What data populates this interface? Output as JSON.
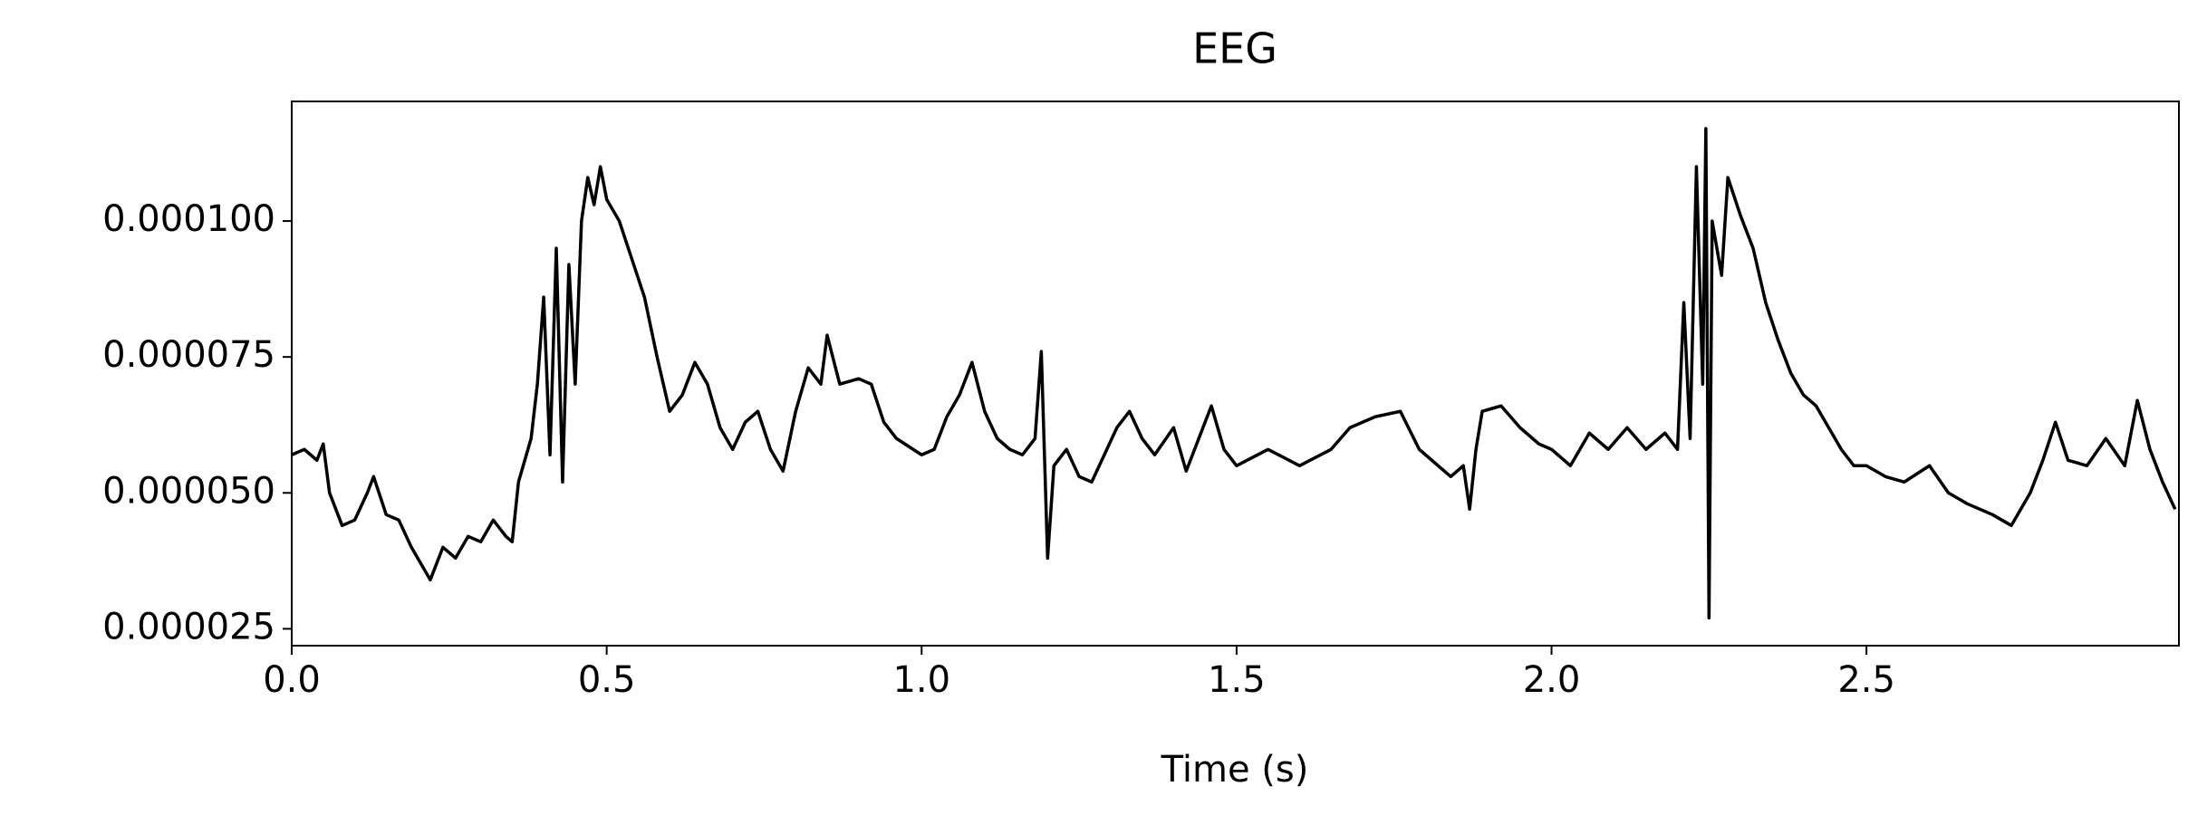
{
  "chart_data": {
    "type": "line",
    "title": "EEG",
    "xlabel": "Time (s)",
    "xlim": [
      0,
      2.996
    ],
    "ylim": [
      2.19e-05,
      0.000122
    ],
    "xticks": [
      {
        "value": 0,
        "label": "0.0"
      },
      0.5,
      {
        "value": 1,
        "label": "1.0"
      },
      1.5,
      {
        "value": 2,
        "label": "2.0"
      },
      2.5
    ],
    "yticks": [
      2.5e-05,
      {
        "value": 5e-05,
        "label": "0.000050"
      },
      7.5e-05,
      {
        "value": 0.0001,
        "label": "0.000100"
      }
    ],
    "grid": false,
    "x": [
      0,
      0.02,
      0.04,
      0.05,
      0.06,
      0.08,
      0.1,
      0.12,
      0.13,
      0.15,
      0.17,
      0.19,
      0.21,
      0.22,
      0.24,
      0.26,
      0.28,
      0.3,
      0.32,
      0.34,
      0.35,
      0.36,
      0.38,
      0.39,
      0.4,
      0.41,
      0.42,
      0.43,
      0.44,
      0.45,
      0.46,
      0.47,
      0.48,
      0.49,
      0.5,
      0.52,
      0.54,
      0.56,
      0.58,
      0.6,
      0.62,
      0.64,
      0.66,
      0.68,
      0.7,
      0.72,
      0.74,
      0.76,
      0.78,
      0.8,
      0.82,
      0.84,
      0.85,
      0.87,
      0.9,
      0.92,
      0.94,
      0.96,
      1.0,
      1.02,
      1.04,
      1.06,
      1.08,
      1.1,
      1.12,
      1.14,
      1.16,
      1.18,
      1.19,
      1.2,
      1.21,
      1.23,
      1.25,
      1.27,
      1.29,
      1.31,
      1.33,
      1.35,
      1.37,
      1.4,
      1.42,
      1.44,
      1.46,
      1.48,
      1.5,
      1.55,
      1.6,
      1.65,
      1.68,
      1.72,
      1.76,
      1.79,
      1.82,
      1.84,
      1.86,
      1.87,
      1.88,
      1.89,
      1.92,
      1.95,
      1.98,
      2.0,
      2.03,
      2.06,
      2.09,
      2.12,
      2.15,
      2.18,
      2.2,
      2.21,
      2.22,
      2.23,
      2.24,
      2.245,
      2.25,
      2.255,
      2.27,
      2.28,
      2.3,
      2.32,
      2.34,
      2.36,
      2.38,
      2.4,
      2.42,
      2.44,
      2.46,
      2.48,
      2.5,
      2.53,
      2.56,
      2.6,
      2.63,
      2.66,
      2.7,
      2.73,
      2.76,
      2.78,
      2.8,
      2.82,
      2.85,
      2.88,
      2.91,
      2.93,
      2.95,
      2.97,
      2.99
    ],
    "series": [
      {
        "name": "EEG",
        "color": "#000000",
        "values": [
          5.7e-05,
          5.8e-05,
          5.6e-05,
          5.9e-05,
          5e-05,
          4.4e-05,
          4.5e-05,
          5e-05,
          5.3e-05,
          4.6e-05,
          4.5e-05,
          4e-05,
          3.6e-05,
          3.4e-05,
          4e-05,
          3.8e-05,
          4.2e-05,
          4.1e-05,
          4.5e-05,
          4.2e-05,
          4.1e-05,
          5.2e-05,
          6e-05,
          7e-05,
          8.6e-05,
          5.7e-05,
          9.5e-05,
          5.2e-05,
          9.2e-05,
          7e-05,
          0.0001,
          0.000108,
          0.000103,
          0.00011,
          0.000104,
          0.0001,
          9.3e-05,
          8.6e-05,
          7.5e-05,
          6.5e-05,
          6.8e-05,
          7.4e-05,
          7e-05,
          6.2e-05,
          5.8e-05,
          6.3e-05,
          6.5e-05,
          5.8e-05,
          5.4e-05,
          6.5e-05,
          7.3e-05,
          7e-05,
          7.9e-05,
          7e-05,
          7.1e-05,
          7e-05,
          6.3e-05,
          6e-05,
          5.7e-05,
          5.8e-05,
          6.4e-05,
          6.8e-05,
          7.4e-05,
          6.5e-05,
          6e-05,
          5.8e-05,
          5.7e-05,
          6e-05,
          7.6e-05,
          3.8e-05,
          5.5e-05,
          5.8e-05,
          5.3e-05,
          5.2e-05,
          5.7e-05,
          6.2e-05,
          6.5e-05,
          6e-05,
          5.7e-05,
          6.2e-05,
          5.4e-05,
          6e-05,
          6.6e-05,
          5.8e-05,
          5.5e-05,
          5.8e-05,
          5.5e-05,
          5.8e-05,
          6.2e-05,
          6.4e-05,
          6.5e-05,
          5.8e-05,
          5.5e-05,
          5.3e-05,
          5.5e-05,
          4.7e-05,
          5.8e-05,
          6.5e-05,
          6.6e-05,
          6.2e-05,
          5.9e-05,
          5.8e-05,
          5.5e-05,
          6.1e-05,
          5.8e-05,
          6.2e-05,
          5.8e-05,
          6.1e-05,
          5.8e-05,
          8.5e-05,
          6e-05,
          0.00011,
          7e-05,
          0.000117,
          2.7e-05,
          0.0001,
          9e-05,
          0.000108,
          0.000101,
          9.5e-05,
          8.5e-05,
          7.8e-05,
          7.2e-05,
          6.8e-05,
          6.6e-05,
          6.2e-05,
          5.8e-05,
          5.5e-05,
          5.5e-05,
          5.3e-05,
          5.2e-05,
          5.5e-05,
          5e-05,
          4.8e-05,
          4.6e-05,
          4.4e-05,
          5e-05,
          5.6e-05,
          6.3e-05,
          5.6e-05,
          5.5e-05,
          6e-05,
          5.5e-05,
          6.7e-05,
          5.8e-05,
          5.2e-05,
          4.7e-05
        ]
      }
    ]
  }
}
